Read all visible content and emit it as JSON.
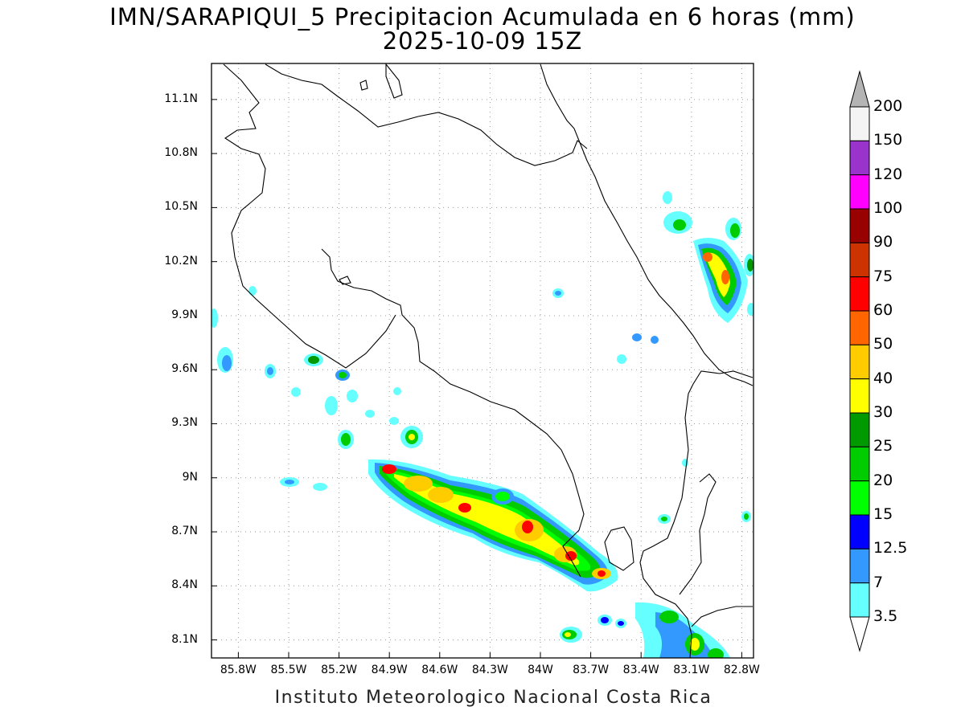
{
  "title_line1": "IMN/SARAPIQUI_5 Precipitacion Acumulada en 6 horas (mm)",
  "title_line2": "2025-10-09 15Z",
  "footer": "Instituto Meteorologico Nacional Costa Rica",
  "map": {
    "lon_range": [
      -85.96,
      -82.73
    ],
    "lat_range": [
      8.0,
      11.3
    ],
    "lat_ticks": [
      "11.1N",
      "10.8N",
      "10.5N",
      "10.2N",
      "9.9N",
      "9.6N",
      "9.3N",
      "9N",
      "8.7N",
      "8.4N",
      "8.1N"
    ],
    "lon_ticks": [
      "85.8W",
      "85.5W",
      "85.2W",
      "84.9W",
      "84.6W",
      "84.3W",
      "84W",
      "83.7W",
      "83.4W",
      "83.1W",
      "82.8W"
    ],
    "grid": true
  },
  "colorbar": {
    "levels": [
      "200",
      "150",
      "120",
      "100",
      "90",
      "75",
      "60",
      "50",
      "40",
      "30",
      "25",
      "20",
      "15",
      "12.5",
      "7",
      "3.5"
    ],
    "colors": [
      "#f4f4f4",
      "#9933cc",
      "#ff00ff",
      "#990000",
      "#cc3300",
      "#ff0000",
      "#ff6600",
      "#ffcc00",
      "#ffff00",
      "#009900",
      "#00cc00",
      "#00ff00",
      "#0000ff",
      "#3399ff",
      "#66ffff"
    ],
    "over_color": "#b4b4b4"
  }
}
